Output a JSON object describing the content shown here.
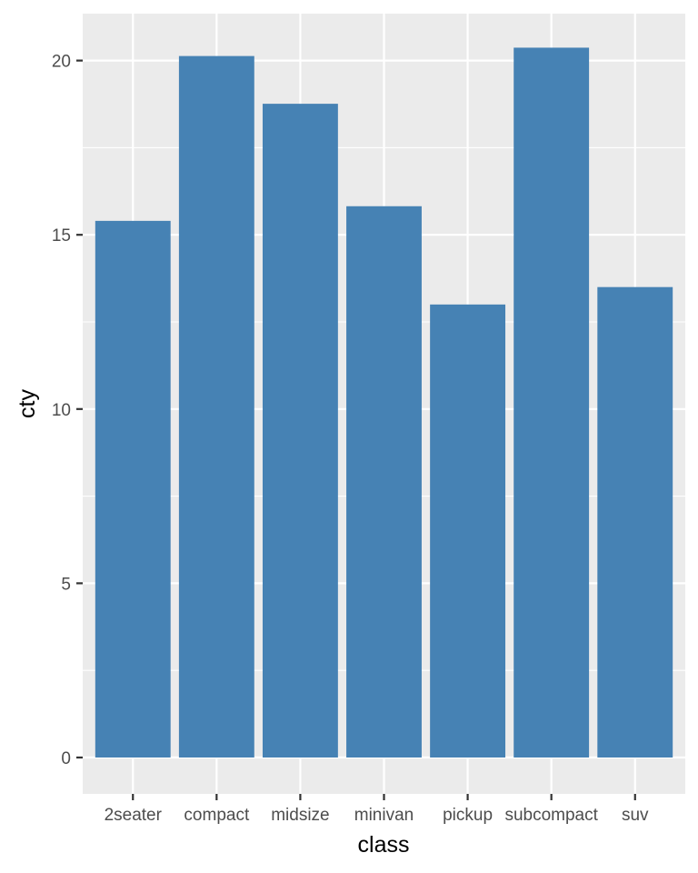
{
  "chart_data": {
    "type": "bar",
    "xlabel": "class",
    "ylabel": "cty",
    "categories": [
      "2seater",
      "compact",
      "midsize",
      "minivan",
      "pickup",
      "subcompact",
      "suv"
    ],
    "values": [
      15.4,
      20.13,
      18.76,
      15.82,
      13.0,
      20.37,
      13.5
    ],
    "ylim": [
      -1,
      21.7
    ],
    "yticks": [
      0,
      5,
      10,
      15,
      20
    ],
    "ytick_labels": [
      "0",
      "5",
      "10",
      "15",
      "20"
    ],
    "grid": true,
    "legend": "none",
    "colors": {
      "bar": "#4682b4",
      "panel_background": "#ebebeb",
      "grid_line": "#ffffff",
      "tick_mark": "#333333"
    }
  }
}
